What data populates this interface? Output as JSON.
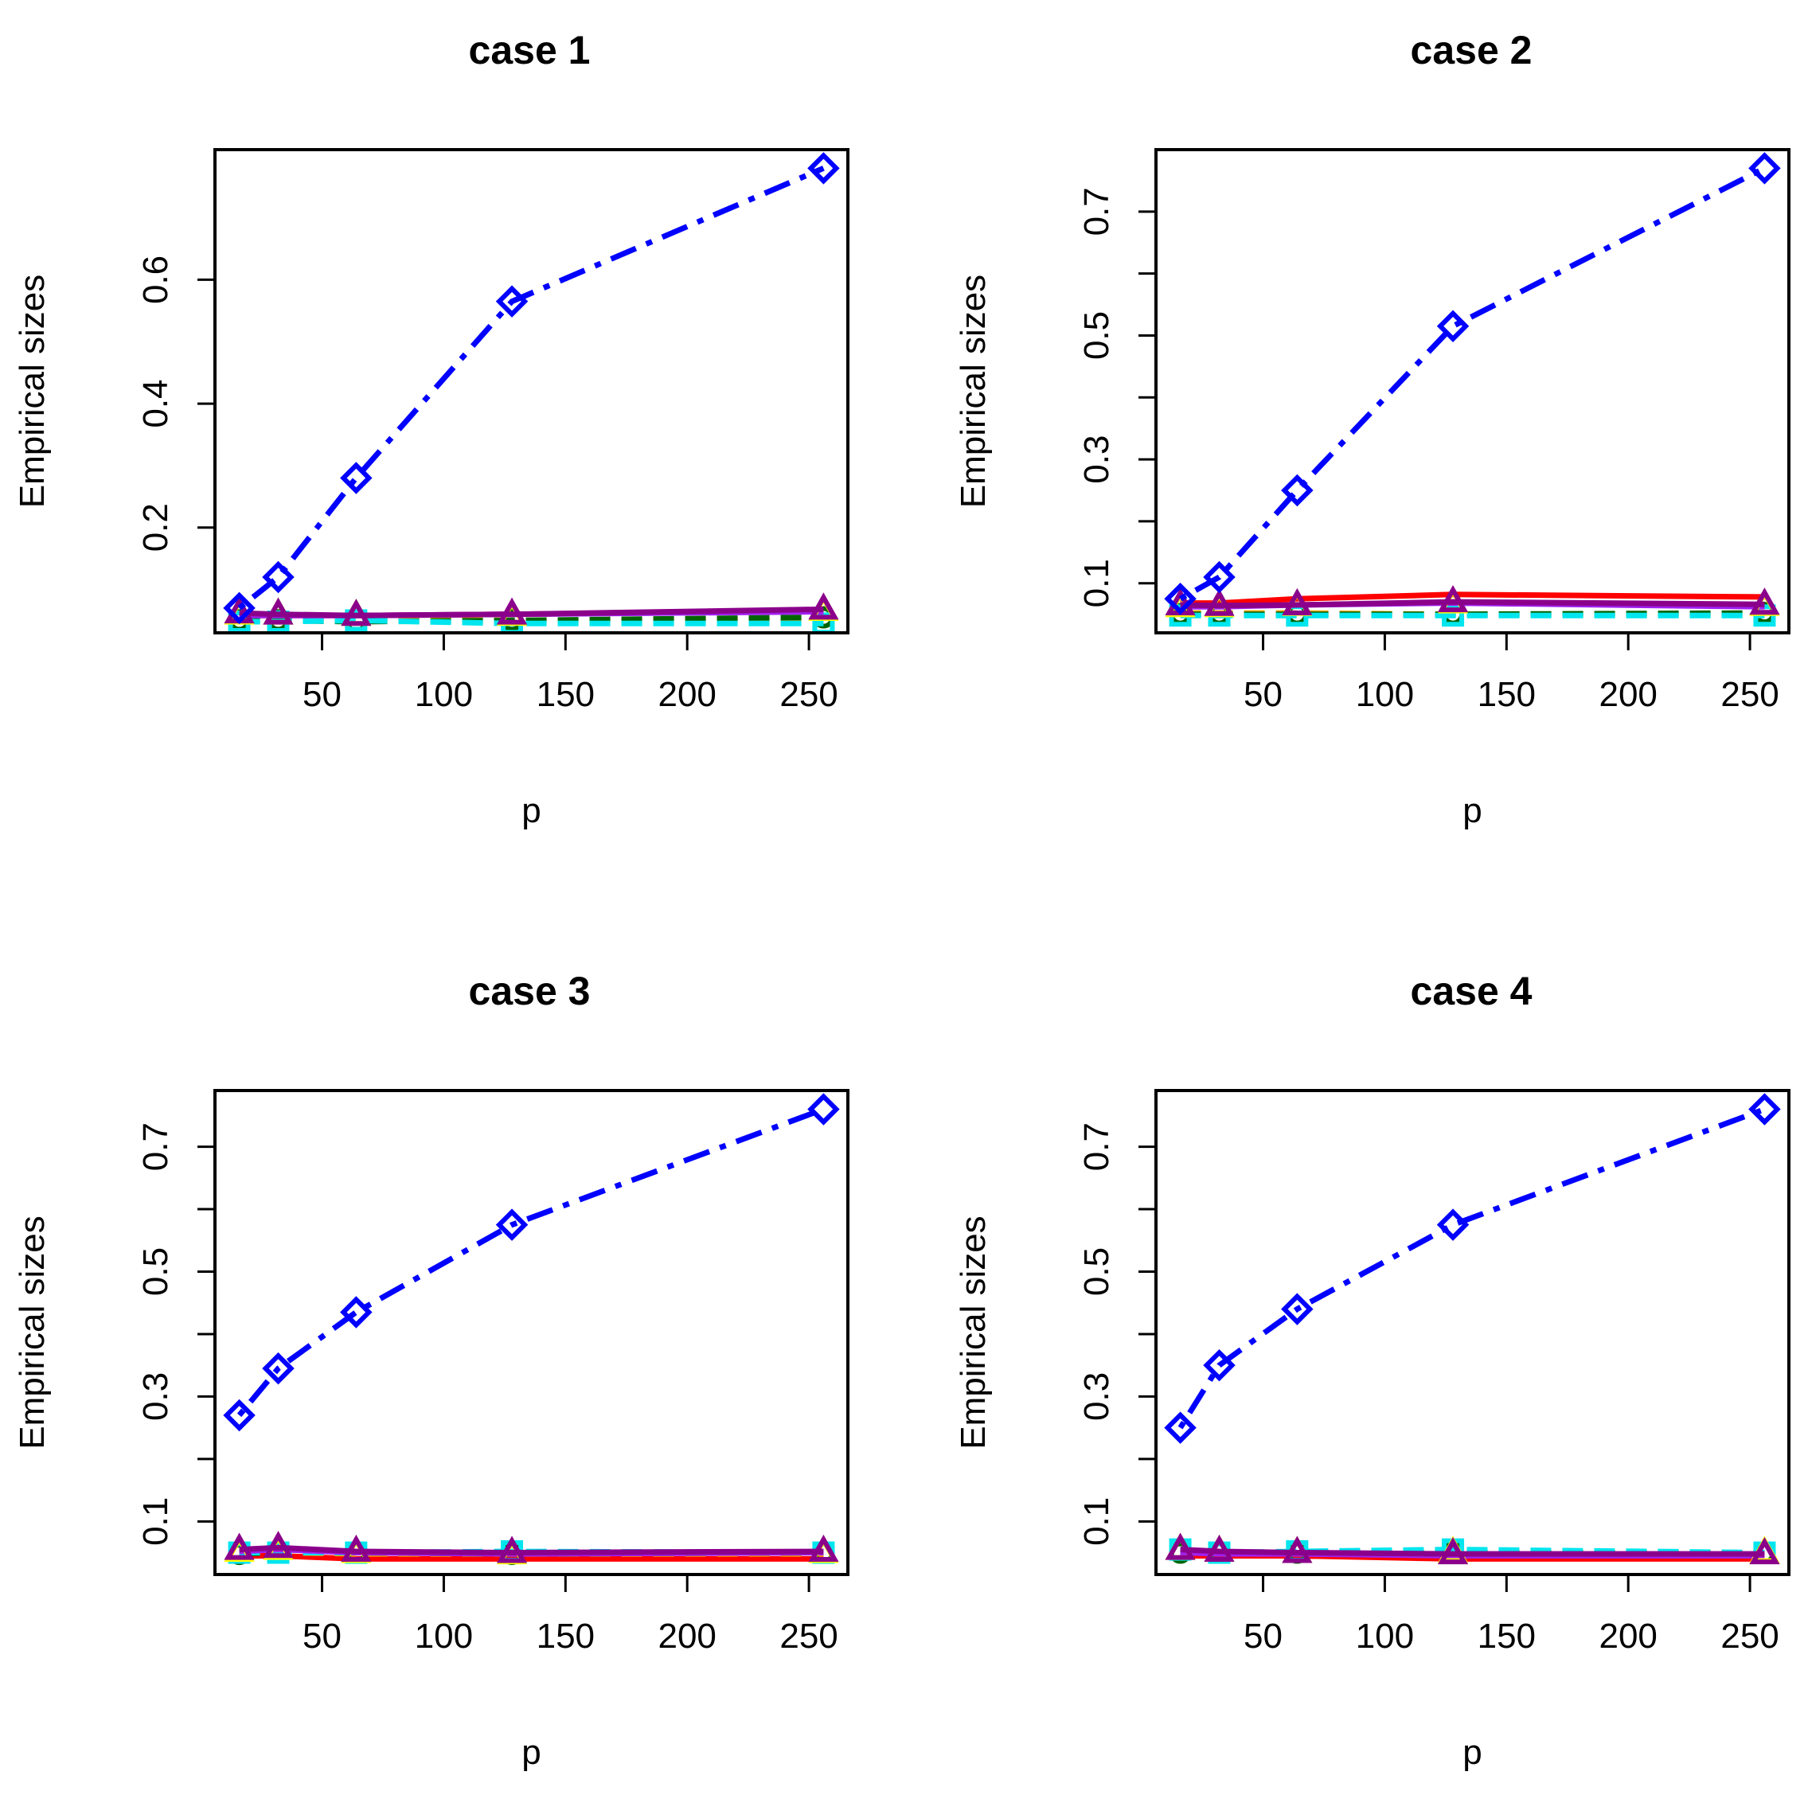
{
  "chart_data": [
    {
      "type": "line",
      "title": "case 1",
      "xlabel": "p",
      "ylabel": "Empirical sizes",
      "x": [
        16,
        32,
        64,
        128,
        256
      ],
      "xlim": [
        6,
        266
      ],
      "ylim": [
        0.03,
        0.81
      ],
      "xticks": [
        "50",
        "100",
        "150",
        "200",
        "250"
      ],
      "yticks": [
        "0.2",
        "0.4",
        "0.6"
      ],
      "series": [
        {
          "name": "blue",
          "color": "#0000ff",
          "dash": "dotdash",
          "marker": "diamond",
          "values": [
            0.07,
            0.12,
            0.28,
            0.565,
            0.78
          ]
        },
        {
          "name": "red",
          "color": "#ff0000",
          "dash": "solid",
          "marker": "none",
          "values": [
            0.058,
            0.058,
            0.058,
            0.06,
            0.066
          ]
        },
        {
          "name": "orange",
          "color": "#ffa500",
          "dash": "dashed",
          "marker": "none",
          "values": [
            0.052,
            0.052,
            0.052,
            0.05,
            0.052
          ]
        },
        {
          "name": "darkgreen",
          "color": "#006400",
          "dash": "dashed",
          "marker": "circle",
          "values": [
            0.05,
            0.05,
            0.048,
            0.05,
            0.055
          ]
        },
        {
          "name": "cyan",
          "color": "#00e5ee",
          "dash": "dashed",
          "marker": "square",
          "values": [
            0.048,
            0.048,
            0.05,
            0.045,
            0.045
          ]
        },
        {
          "name": "purple",
          "color": "#a020f0",
          "dash": "solid",
          "marker": "none",
          "values": [
            0.058,
            0.058,
            0.058,
            0.06,
            0.064
          ]
        },
        {
          "name": "yellow",
          "color": "#ffff00",
          "dash": "none",
          "marker": "triangle",
          "values": [
            0.06,
            0.06,
            0.058,
            0.058,
            0.066
          ]
        },
        {
          "name": "darkmagenta",
          "color": "#8b008b",
          "dash": "solid",
          "marker": "triangle",
          "values": [
            0.062,
            0.06,
            0.058,
            0.06,
            0.068
          ]
        }
      ]
    },
    {
      "type": "line",
      "title": "case 2",
      "xlabel": "p",
      "ylabel": "Empirical sizes",
      "x": [
        16,
        32,
        64,
        128,
        256
      ],
      "xlim": [
        6,
        266
      ],
      "ylim": [
        0.02,
        0.8
      ],
      "xticks": [
        "50",
        "100",
        "150",
        "200",
        "250"
      ],
      "yticks": [
        "0.1",
        "0.3",
        "0.5",
        "0.7"
      ],
      "yminor": [
        0.2,
        0.4,
        0.6
      ],
      "series": [
        {
          "name": "blue",
          "color": "#0000ff",
          "dash": "dotdash",
          "marker": "diamond",
          "values": [
            0.075,
            0.11,
            0.25,
            0.515,
            0.77
          ]
        },
        {
          "name": "red",
          "color": "#ff0000",
          "dash": "solid",
          "marker": "none",
          "values": [
            0.068,
            0.068,
            0.075,
            0.082,
            0.078
          ]
        },
        {
          "name": "orange",
          "color": "#ffa500",
          "dash": "dashed",
          "marker": "none",
          "values": [
            0.052,
            0.052,
            0.052,
            0.05,
            0.05
          ]
        },
        {
          "name": "darkgreen",
          "color": "#006400",
          "dash": "dashed",
          "marker": "circle",
          "values": [
            0.05,
            0.05,
            0.05,
            0.05,
            0.052
          ]
        },
        {
          "name": "cyan",
          "color": "#00e5ee",
          "dash": "dashed",
          "marker": "square",
          "values": [
            0.048,
            0.048,
            0.048,
            0.048,
            0.048
          ]
        },
        {
          "name": "purple",
          "color": "#a020f0",
          "dash": "solid",
          "marker": "none",
          "values": [
            0.062,
            0.062,
            0.065,
            0.068,
            0.062
          ]
        },
        {
          "name": "yellow",
          "color": "#ffff00",
          "dash": "none",
          "marker": "triangle",
          "values": [
            0.062,
            0.062,
            0.064,
            0.068,
            0.064
          ]
        },
        {
          "name": "darkmagenta",
          "color": "#8b008b",
          "dash": "solid",
          "marker": "triangle",
          "values": [
            0.065,
            0.064,
            0.065,
            0.07,
            0.066
          ]
        }
      ]
    },
    {
      "type": "line",
      "title": "case 3",
      "xlabel": "p",
      "ylabel": "Empirical sizes",
      "x": [
        16,
        32,
        64,
        128,
        256
      ],
      "xlim": [
        6,
        266
      ],
      "ylim": [
        0.015,
        0.79
      ],
      "xticks": [
        "50",
        "100",
        "150",
        "200",
        "250"
      ],
      "yticks": [
        "0.1",
        "0.3",
        "0.5",
        "0.7"
      ],
      "yminor": [
        0.2,
        0.4,
        0.6
      ],
      "series": [
        {
          "name": "blue",
          "color": "#0000ff",
          "dash": "dotdash",
          "marker": "diamond",
          "values": [
            0.27,
            0.345,
            0.435,
            0.575,
            0.76
          ]
        },
        {
          "name": "red",
          "color": "#ff0000",
          "dash": "solid",
          "marker": "none",
          "values": [
            0.045,
            0.045,
            0.04,
            0.04,
            0.04
          ]
        },
        {
          "name": "orange",
          "color": "#ffa500",
          "dash": "dashed",
          "marker": "none",
          "values": [
            0.05,
            0.05,
            0.048,
            0.048,
            0.048
          ]
        },
        {
          "name": "darkgreen",
          "color": "#006400",
          "dash": "dashed",
          "marker": "circle",
          "values": [
            0.048,
            0.05,
            0.05,
            0.048,
            0.05
          ]
        },
        {
          "name": "cyan",
          "color": "#00e5ee",
          "dash": "dashed",
          "marker": "square",
          "values": [
            0.05,
            0.05,
            0.05,
            0.052,
            0.05
          ]
        },
        {
          "name": "purple",
          "color": "#a020f0",
          "dash": "solid",
          "marker": "none",
          "values": [
            0.052,
            0.055,
            0.05,
            0.048,
            0.05
          ]
        },
        {
          "name": "yellow",
          "color": "#ffff00",
          "dash": "none",
          "marker": "triangle",
          "values": [
            0.052,
            0.055,
            0.05,
            0.048,
            0.05
          ]
        },
        {
          "name": "darkmagenta",
          "color": "#8b008b",
          "dash": "solid",
          "marker": "triangle",
          "values": [
            0.055,
            0.058,
            0.052,
            0.05,
            0.052
          ]
        }
      ]
    },
    {
      "type": "line",
      "title": "case 4",
      "xlabel": "p",
      "ylabel": "Empirical sizes",
      "x": [
        16,
        32,
        64,
        128,
        256
      ],
      "xlim": [
        6,
        266
      ],
      "ylim": [
        0.015,
        0.79
      ],
      "xticks": [
        "50",
        "100",
        "150",
        "200",
        "250"
      ],
      "yticks": [
        "0.1",
        "0.3",
        "0.5",
        "0.7"
      ],
      "yminor": [
        0.2,
        0.4,
        0.6
      ],
      "series": [
        {
          "name": "blue",
          "color": "#0000ff",
          "dash": "dotdash",
          "marker": "diamond",
          "values": [
            0.25,
            0.35,
            0.44,
            0.575,
            0.76
          ]
        },
        {
          "name": "red",
          "color": "#ff0000",
          "dash": "solid",
          "marker": "none",
          "values": [
            0.045,
            0.045,
            0.045,
            0.04,
            0.04
          ]
        },
        {
          "name": "orange",
          "color": "#ffa500",
          "dash": "dashed",
          "marker": "none",
          "values": [
            0.05,
            0.05,
            0.05,
            0.05,
            0.05
          ]
        },
        {
          "name": "darkgreen",
          "color": "#006400",
          "dash": "dashed",
          "marker": "circle",
          "values": [
            0.05,
            0.05,
            0.05,
            0.05,
            0.05
          ]
        },
        {
          "name": "cyan",
          "color": "#00e5ee",
          "dash": "dashed",
          "marker": "square",
          "values": [
            0.055,
            0.05,
            0.052,
            0.055,
            0.05
          ]
        },
        {
          "name": "purple",
          "color": "#a020f0",
          "dash": "solid",
          "marker": "none",
          "values": [
            0.05,
            0.048,
            0.048,
            0.045,
            0.045
          ]
        },
        {
          "name": "yellow",
          "color": "#ffff00",
          "dash": "none",
          "marker": "triangle",
          "values": [
            0.055,
            0.052,
            0.05,
            0.05,
            0.05
          ]
        },
        {
          "name": "darkmagenta",
          "color": "#8b008b",
          "dash": "solid",
          "marker": "triangle",
          "values": [
            0.055,
            0.052,
            0.05,
            0.048,
            0.048
          ]
        }
      ]
    }
  ]
}
